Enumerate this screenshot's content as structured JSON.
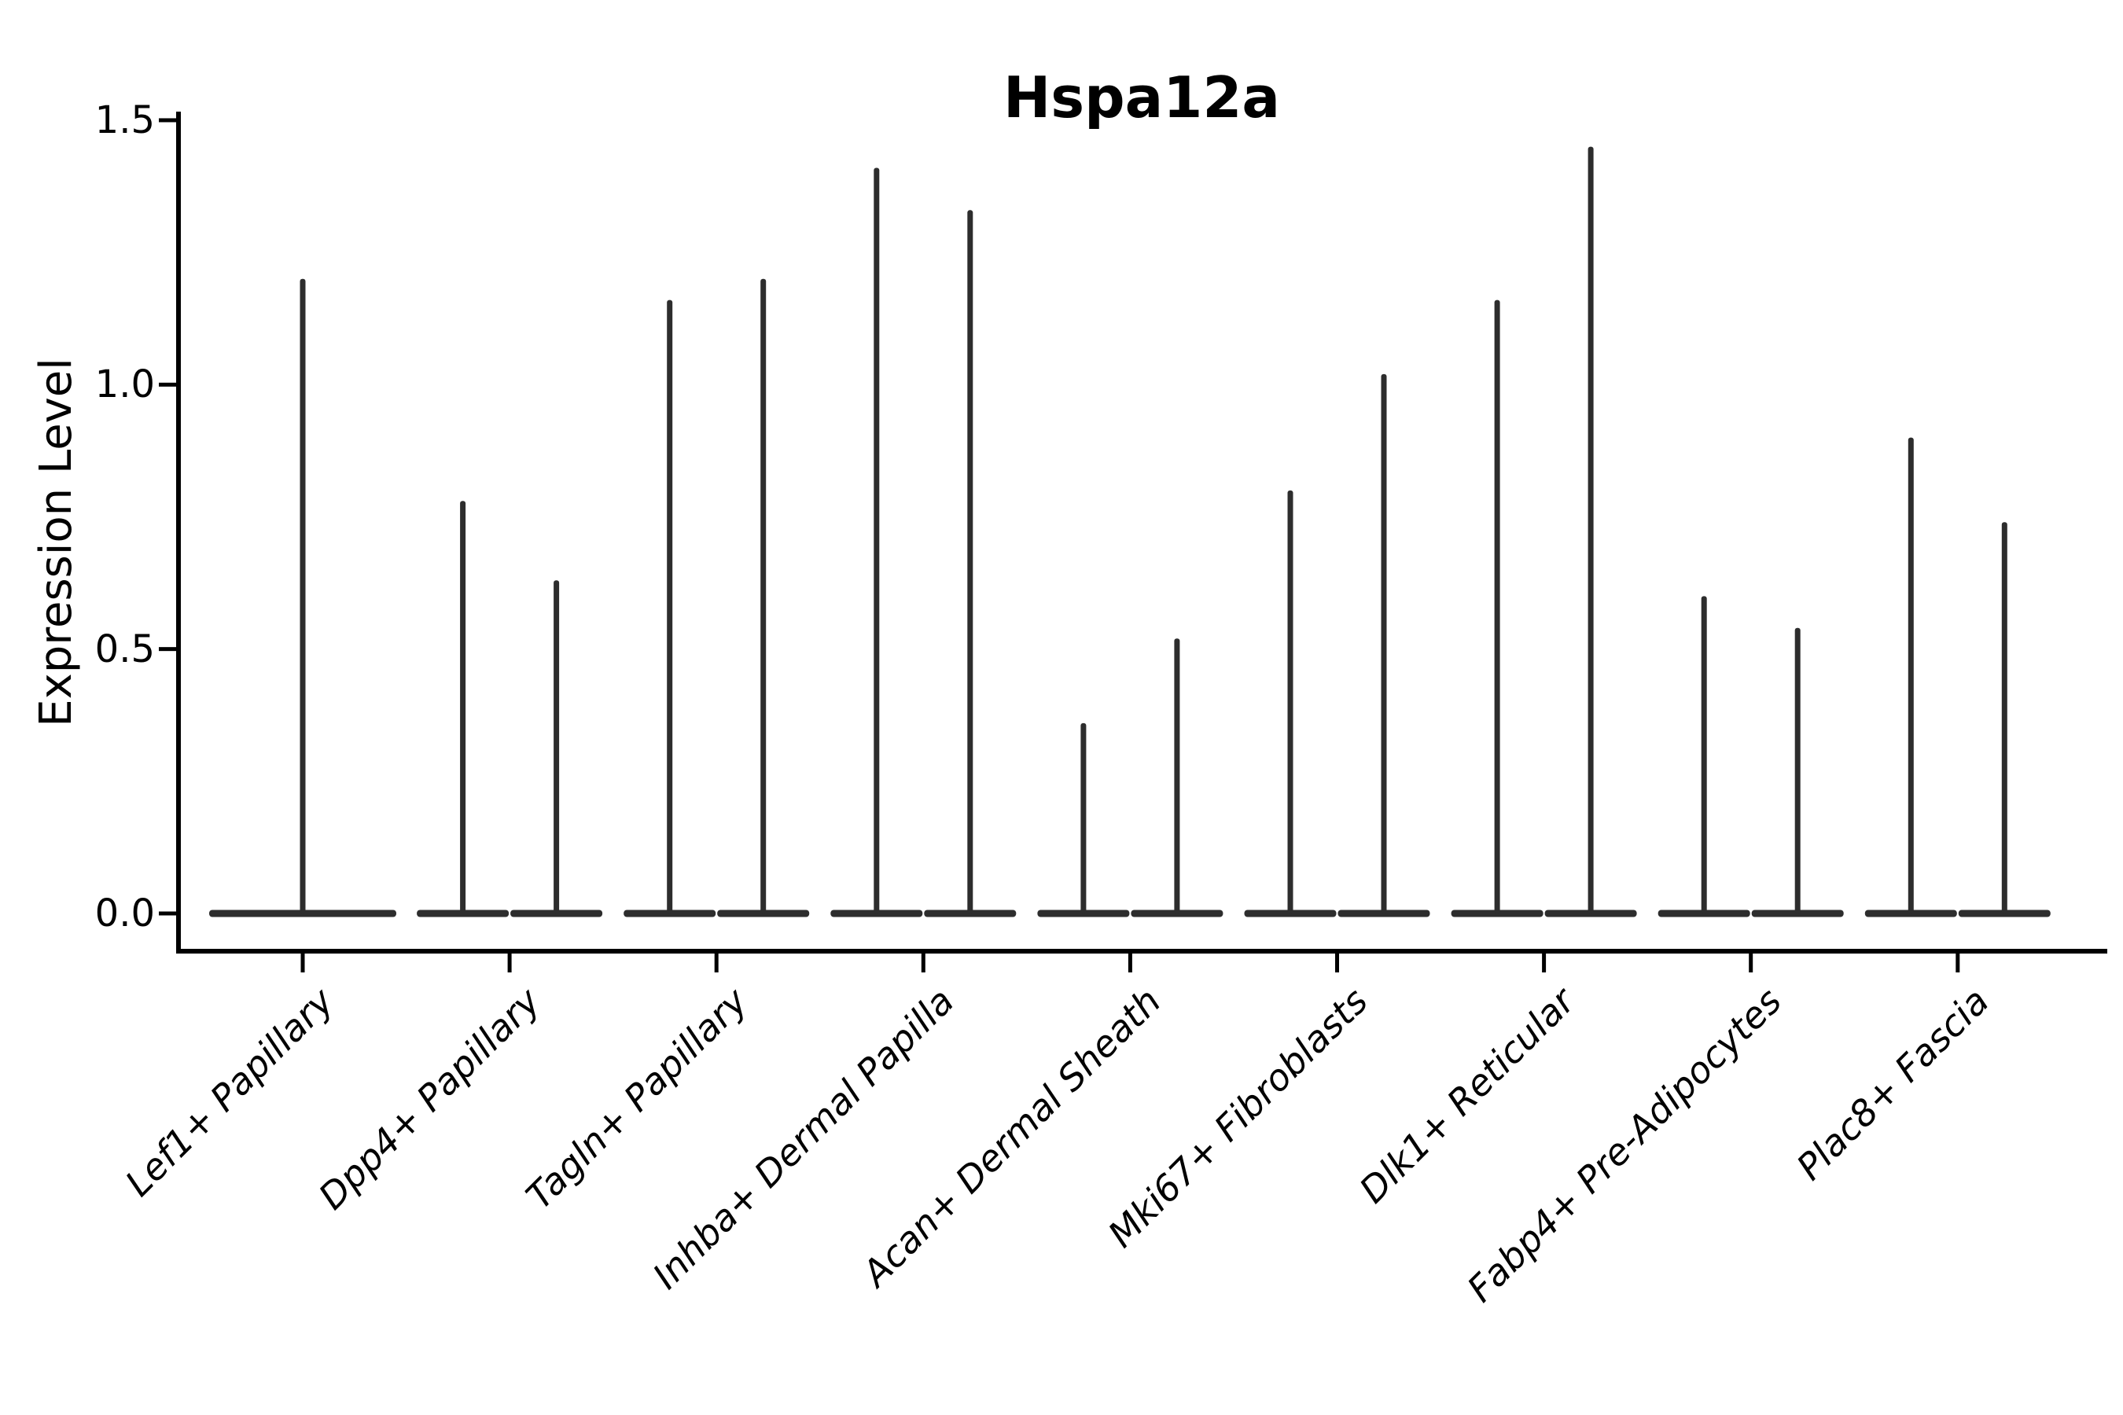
{
  "title": "Hspa12a",
  "chart_data": {
    "type": "violin",
    "title": "Hspa12a",
    "xlabel": "",
    "ylabel": "Expression Level",
    "ylim": [
      0,
      1.5
    ],
    "yticks": [
      "0.0",
      "0.5",
      "1.0",
      "1.5"
    ],
    "grid": false,
    "legend": "none",
    "background": "#ffffff",
    "colors": {
      "violin": "#2d2d2d",
      "axis": "#000000",
      "text": "#000000"
    },
    "note": "Single-cell expression violin plot; each distribution is massed at 0 with a thin spike reaching the maximum expression value. Most categories contain two side-by-side violins.",
    "categories": [
      "Lef1+ Papillary",
      "Dpp4+ Papillary",
      "Tagln+ Papillary",
      "Inhba+ Dermal Papilla",
      "Acan+ Dermal Sheath",
      "Mki67+ Fibroblasts",
      "Dlk1+ Reticular",
      "Fabp4+ Pre-Adipocytes",
      "Plac8+ Fascia"
    ],
    "series": [
      {
        "category": "Lef1+ Papillary",
        "violin_max": [
          1.2
        ]
      },
      {
        "category": "Dpp4+ Papillary",
        "violin_max": [
          0.78,
          0.63
        ]
      },
      {
        "category": "Tagln+ Papillary",
        "violin_max": [
          1.16,
          1.2
        ]
      },
      {
        "category": "Inhba+ Dermal Papilla",
        "violin_max": [
          1.41,
          1.33
        ]
      },
      {
        "category": "Acan+ Dermal Sheath",
        "violin_max": [
          0.36,
          0.52
        ]
      },
      {
        "category": "Mki67+ Fibroblasts",
        "violin_max": [
          0.8,
          1.02
        ]
      },
      {
        "category": "Dlk1+ Reticular",
        "violin_max": [
          1.16,
          1.45
        ]
      },
      {
        "category": "Fabp4+ Pre-Adipocytes",
        "violin_max": [
          0.6,
          0.54
        ]
      },
      {
        "category": "Plac8+ Fascia",
        "violin_max": [
          0.9,
          0.74
        ]
      }
    ]
  }
}
